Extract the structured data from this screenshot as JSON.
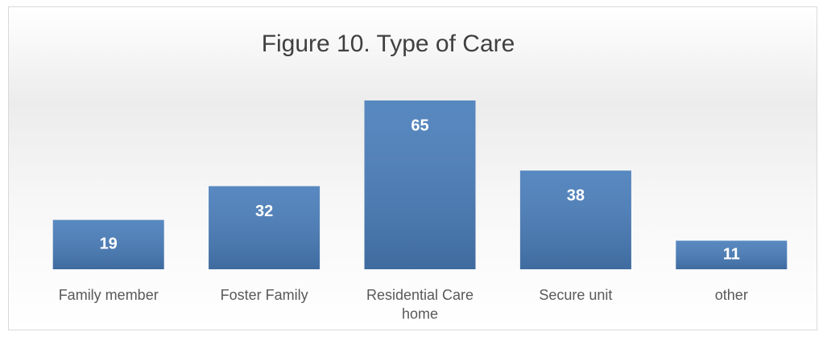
{
  "chart_data": {
    "type": "bar",
    "title": "Figure 10. Type of Care",
    "categories": [
      "Family member",
      "Foster Family",
      "Residential Care home",
      "Secure unit",
      "other"
    ],
    "values": [
      19,
      32,
      65,
      38,
      11
    ],
    "color": "#4a7ebb",
    "grid": false
  }
}
